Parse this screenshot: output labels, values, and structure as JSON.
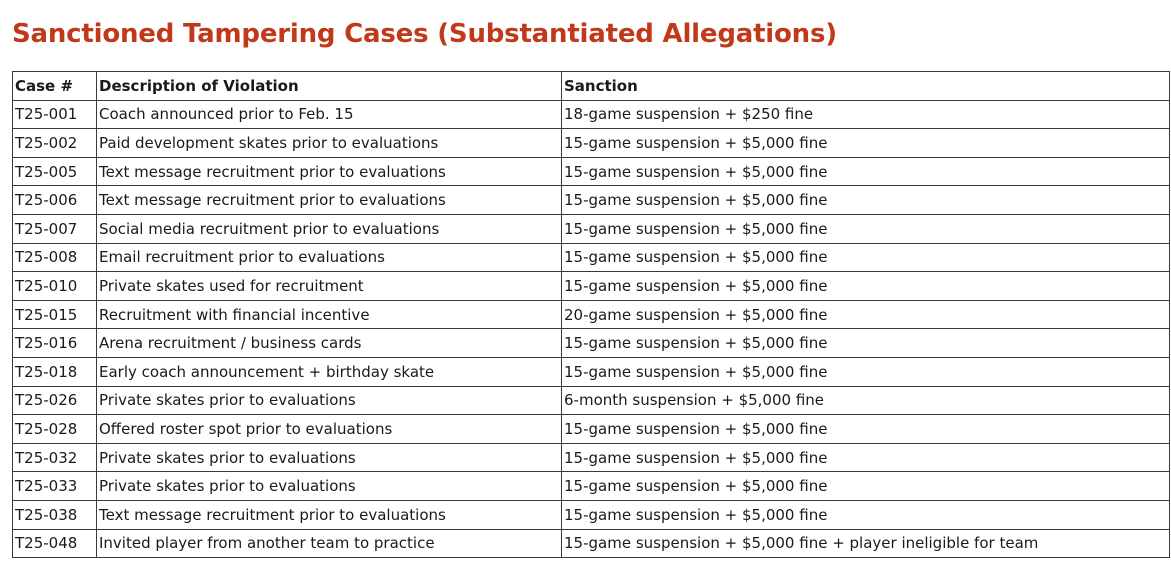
{
  "title": "Sanctioned Tampering Cases (Substantiated Allegations)",
  "table": {
    "headers": [
      "Case #",
      "Description of Violation",
      "Sanction"
    ],
    "rows": [
      [
        "T25-001",
        "Coach announced prior to Feb. 15",
        "18-game suspension + $250 fine"
      ],
      [
        "T25-002",
        "Paid development skates prior to evaluations",
        "15-game suspension + $5,000 fine"
      ],
      [
        "T25-005",
        "Text message recruitment prior to evaluations",
        "15-game suspension + $5,000 fine"
      ],
      [
        "T25-006",
        "Text message recruitment prior to evaluations",
        "15-game suspension + $5,000 fine"
      ],
      [
        "T25-007",
        "Social media recruitment prior to evaluations",
        "15-game suspension + $5,000 fine"
      ],
      [
        "T25-008",
        "Email recruitment prior to evaluations",
        "15-game suspension + $5,000 fine"
      ],
      [
        "T25-010",
        "Private skates used for recruitment",
        "15-game suspension + $5,000 fine"
      ],
      [
        "T25-015",
        "Recruitment with financial incentive",
        "20-game suspension + $5,000 fine"
      ],
      [
        "T25-016",
        "Arena recruitment / business cards",
        "15-game suspension + $5,000 fine"
      ],
      [
        "T25-018",
        "Early coach announcement + birthday skate",
        "15-game suspension + $5,000 fine"
      ],
      [
        "T25-026",
        "Private skates prior to evaluations",
        "6-month suspension + $5,000 fine"
      ],
      [
        "T25-028",
        "Offered roster spot prior to evaluations",
        "15-game suspension + $5,000 fine"
      ],
      [
        "T25-032",
        "Private skates prior to evaluations",
        "15-game suspension + $5,000 fine"
      ],
      [
        "T25-033",
        "Private skates prior to evaluations",
        "15-game suspension + $5,000 fine"
      ],
      [
        "T25-038",
        "Text message recruitment prior to evaluations",
        "15-game suspension + $5,000 fine"
      ],
      [
        "T25-048",
        "Invited player from another team to practice",
        "15-game suspension + $5,000 fine + player ineligible for team"
      ]
    ]
  },
  "colors": {
    "title": "#c0391b",
    "text": "#1a1a1a",
    "border": "#3a3a3a"
  }
}
